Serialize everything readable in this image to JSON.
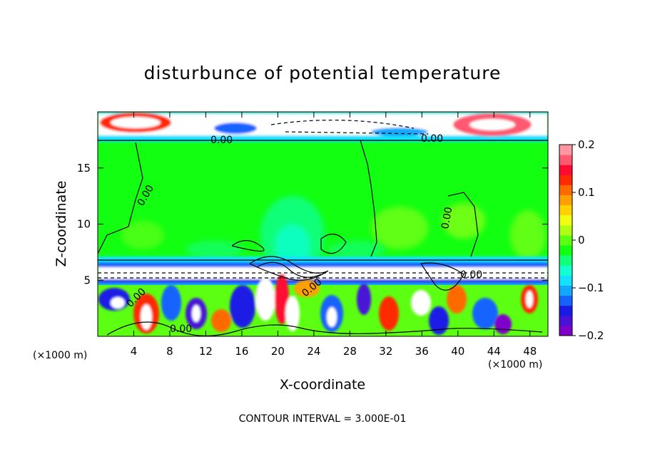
{
  "chart_data": {
    "type": "heatmap",
    "title": "disturbunce of potential temperature",
    "xlabel": "X-coordinate",
    "ylabel": "Z-coordinate",
    "x_unit": "(×1000 m)",
    "xlim": [
      0,
      50
    ],
    "ylim": [
      0,
      20
    ],
    "x_ticks": [
      4,
      8,
      12,
      16,
      20,
      24,
      28,
      32,
      36,
      40,
      44,
      48
    ],
    "y_ticks": [
      5,
      10,
      15
    ],
    "colorbar": {
      "range": [
        -0.2,
        0.2
      ],
      "tick_labels": [
        "0.2",
        "0.1",
        "0",
        "−0.1",
        "−0.2"
      ],
      "tick_values": [
        0.2,
        0.1,
        0,
        -0.1,
        -0.2
      ],
      "colors": [
        "#7f00c8",
        "#4a12d8",
        "#1a1ae6",
        "#1464ff",
        "#13a7ff",
        "#13e1ff",
        "#12ffd2",
        "#12ff7a",
        "#12ff12",
        "#5cff12",
        "#b0ff12",
        "#f0ff12",
        "#ffd200",
        "#ffa000",
        "#ff6a00",
        "#ff2a00",
        "#ff0a30",
        "#ff5a72",
        "#ff96a0"
      ]
    },
    "contour_labels": [
      "0.00",
      "0.00",
      "0.00",
      "0.00",
      "0.00",
      "0.00",
      "0.00",
      "0.00"
    ],
    "contour_interval_text": "CONTOUR INTERVAL = 3.000E-01"
  }
}
